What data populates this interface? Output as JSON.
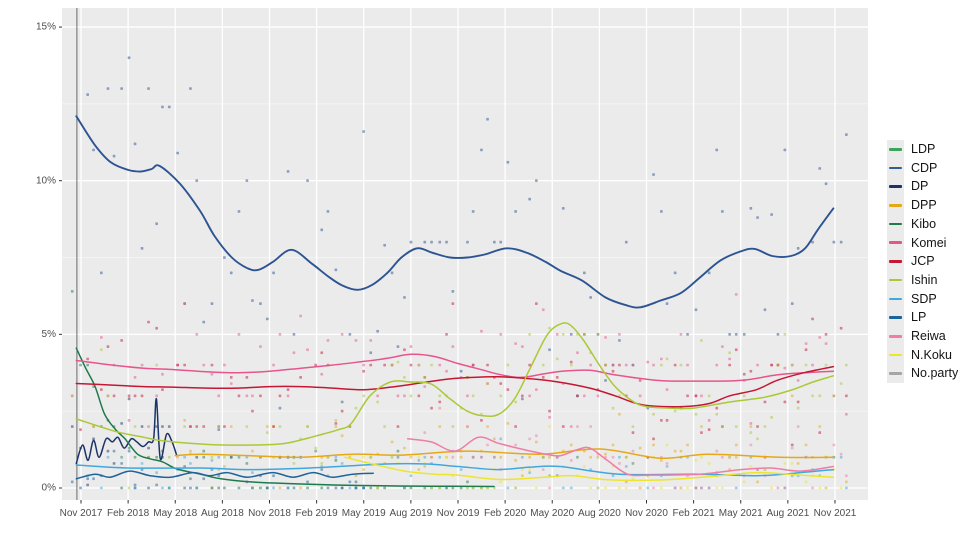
{
  "page": {
    "background": "#ffffff"
  },
  "chart_data": {
    "type": "scatter",
    "title": "",
    "subtitle": "",
    "panel": {
      "background": "#ebebeb",
      "grid_major_color": "#ffffff",
      "grid_minor_color": "#f7f7f7"
    },
    "x_axis": {
      "tick_labels": [
        "Nov 2017",
        "Feb 2018",
        "May 2018",
        "Aug 2018",
        "Nov 2018",
        "Feb 2019",
        "May 2019",
        "Aug 2019",
        "Nov 2019",
        "Feb 2020",
        "May 2020",
        "Aug 2020",
        "Nov 2020",
        "Feb 2021",
        "May 2021",
        "Aug 2021",
        "Nov 2021"
      ],
      "months_per_tick": 3,
      "label_color": "#4d4d4d"
    },
    "y_axis": {
      "tick_labels": [
        "0%",
        "5%",
        "10%",
        "15%"
      ],
      "tick_values": [
        0,
        5,
        10,
        15
      ],
      "minor_values": [
        2.5,
        7.5,
        12.5
      ],
      "range": [
        0,
        15.5
      ],
      "label_color": "#4d4d4d"
    },
    "event_line": {
      "month": -0.26,
      "color": "#5c5c5c"
    },
    "legend": [
      {
        "key": "ldp",
        "label": "LDP",
        "color": "#3fa45b"
      },
      {
        "key": "cdp",
        "label": "CDP",
        "color": "#2d5e94"
      },
      {
        "key": "dp",
        "label": "DP",
        "color": "#1b3467"
      },
      {
        "key": "dpp",
        "label": "DPP",
        "color": "#e6a817"
      },
      {
        "key": "kibo",
        "label": "Kibo",
        "color": "#1d7a4b"
      },
      {
        "key": "komei",
        "label": "Komei",
        "color": "#e8548c"
      },
      {
        "key": "jcp",
        "label": "JCP",
        "color": "#c41734"
      },
      {
        "key": "ishin",
        "label": "Ishin",
        "color": "#abc837"
      },
      {
        "key": "sdp",
        "label": "SDP",
        "color": "#41a7dc"
      },
      {
        "key": "lp",
        "label": "LP",
        "color": "#1f639b"
      },
      {
        "key": "reiwa",
        "label": "Reiwa",
        "color": "#f07ca8"
      },
      {
        "key": "nkoku",
        "label": "N.Koku",
        "color": "#ece52e"
      },
      {
        "key": "noparty",
        "label": "No.party",
        "color": "#a5a5a5"
      }
    ],
    "series": [
      {
        "name": "CDP",
        "color": "#2d5492",
        "line_width": 1.9,
        "line": [
          [
            -0.3,
            12.1
          ],
          [
            0.9,
            11.15
          ],
          [
            1.9,
            10.6
          ],
          [
            3,
            10.35
          ],
          [
            3.8,
            10.3
          ],
          [
            4.5,
            10.38
          ],
          [
            5,
            10.48
          ],
          [
            6.3,
            9.9
          ],
          [
            7.6,
            9.0
          ],
          [
            8.5,
            8.2
          ],
          [
            9.6,
            7.5
          ],
          [
            10.6,
            7.15
          ],
          [
            11.3,
            7.1
          ],
          [
            12.2,
            7.35
          ],
          [
            13.4,
            7.75
          ],
          [
            14.7,
            7.3
          ],
          [
            15.7,
            6.9
          ],
          [
            16.6,
            6.6
          ],
          [
            17.6,
            6.45
          ],
          [
            18.5,
            6.6
          ],
          [
            19.5,
            7.0
          ],
          [
            20.4,
            7.5
          ],
          [
            21.4,
            7.8
          ],
          [
            22.4,
            7.65
          ],
          [
            23.5,
            7.5
          ],
          [
            24.6,
            7.5
          ],
          [
            25.7,
            7.6
          ],
          [
            27.1,
            7.8
          ],
          [
            28.4,
            7.65
          ],
          [
            29.6,
            7.35
          ],
          [
            30.6,
            7.05
          ],
          [
            31.9,
            6.75
          ],
          [
            33.4,
            6.2
          ],
          [
            34.7,
            5.95
          ],
          [
            35.6,
            5.88
          ],
          [
            36.9,
            6.1
          ],
          [
            38.2,
            6.35
          ],
          [
            39.4,
            6.85
          ],
          [
            40.7,
            7.4
          ],
          [
            42,
            7.7
          ],
          [
            42.9,
            7.78
          ],
          [
            44,
            7.55
          ],
          [
            45.2,
            7.55
          ],
          [
            46.1,
            7.8
          ],
          [
            46.9,
            8.4
          ],
          [
            47.9,
            9.1
          ]
        ],
        "scatter": {
          "from": -0.5,
          "to": 48.9,
          "p": 0.95,
          "sd": 2.4
        }
      },
      {
        "name": "DP",
        "color": "#1b3467",
        "line_width": 1.5,
        "line": [
          [
            -0.3,
            0.8
          ],
          [
            0.1,
            1.4
          ],
          [
            0.45,
            0.9
          ],
          [
            0.8,
            1.55
          ],
          [
            1.15,
            1.0
          ],
          [
            1.6,
            1.6
          ],
          [
            2,
            1.5
          ],
          [
            2.35,
            1.65
          ],
          [
            2.75,
            1.3
          ],
          [
            3.2,
            1.6
          ],
          [
            3.55,
            1.5
          ],
          [
            3.95,
            1.35
          ],
          [
            4.3,
            1.5
          ],
          [
            4.62,
            1.6
          ],
          [
            4.8,
            2.9
          ],
          [
            5.05,
            0.95
          ],
          [
            5.45,
            1.75
          ],
          [
            5.8,
            1.5
          ],
          [
            6.1,
            1.05
          ]
        ],
        "scatter": {
          "from": -0.5,
          "to": 6.1,
          "p": 0.9,
          "sd": 0.7
        }
      },
      {
        "name": "DPP",
        "color": "#e6a817",
        "line_width": 1.5,
        "line": [
          [
            6,
            1.05
          ],
          [
            7.6,
            1.1
          ],
          [
            10.8,
            1.05
          ],
          [
            13.9,
            1.0
          ],
          [
            17.3,
            1.1
          ],
          [
            20.3,
            1.07
          ],
          [
            24.6,
            1.2
          ],
          [
            29.2,
            1.1
          ],
          [
            33,
            1.27
          ],
          [
            36.9,
            0.97
          ],
          [
            39.9,
            1.1
          ],
          [
            44.5,
            1.0
          ],
          [
            47.9,
            1.0
          ]
        ],
        "scatter": {
          "from": 6,
          "to": 48.9,
          "p": 0.85,
          "sd": 0.55
        }
      },
      {
        "name": "Kibo",
        "color": "#1d7a4b",
        "line_width": 1.5,
        "line": [
          [
            -0.3,
            4.55
          ],
          [
            0.3,
            3.9
          ],
          [
            0.9,
            3.3
          ],
          [
            1.5,
            2.4
          ],
          [
            2.2,
            1.9
          ],
          [
            2.8,
            1.6
          ],
          [
            3.6,
            1.1
          ],
          [
            4.4,
            0.95
          ],
          [
            5.2,
            0.85
          ],
          [
            6.1,
            0.62
          ],
          [
            7.6,
            0.45
          ],
          [
            8.9,
            0.3
          ],
          [
            10.8,
            0.2
          ],
          [
            14,
            0.13
          ],
          [
            17.8,
            0.08
          ],
          [
            22.3,
            0.06
          ],
          [
            26.3,
            0.05
          ]
        ],
        "scatter": {
          "from": -0.5,
          "to": 26.3,
          "p": 0.85,
          "sd": 0.65
        }
      },
      {
        "name": "Komei",
        "color": "#e8548c",
        "line_width": 1.5,
        "line": [
          [
            -0.3,
            4.15
          ],
          [
            2,
            4.0
          ],
          [
            4,
            3.9
          ],
          [
            6,
            3.85
          ],
          [
            8,
            3.78
          ],
          [
            10,
            3.75
          ],
          [
            12,
            3.8
          ],
          [
            14,
            3.9
          ],
          [
            16,
            4.0
          ],
          [
            18,
            4.12
          ],
          [
            19.5,
            4.22
          ],
          [
            21,
            4.35
          ],
          [
            22.5,
            4.28
          ],
          [
            24,
            4.05
          ],
          [
            25.5,
            3.85
          ],
          [
            26.6,
            3.7
          ],
          [
            28,
            3.6
          ],
          [
            29.5,
            3.72
          ],
          [
            30.6,
            3.8
          ],
          [
            32.4,
            3.83
          ],
          [
            34,
            3.68
          ],
          [
            36.7,
            3.5
          ],
          [
            39,
            3.48
          ],
          [
            42,
            3.5
          ],
          [
            44.3,
            3.68
          ],
          [
            46,
            3.75
          ],
          [
            47.9,
            3.8
          ]
        ],
        "scatter": {
          "from": -0.5,
          "to": 48.9,
          "p": 0.9,
          "sd": 1.0
        }
      },
      {
        "name": "JCP",
        "color": "#c41734",
        "line_width": 1.5,
        "line": [
          [
            -0.3,
            3.4
          ],
          [
            2,
            3.35
          ],
          [
            4,
            3.3
          ],
          [
            6,
            3.28
          ],
          [
            8,
            3.25
          ],
          [
            10,
            3.25
          ],
          [
            12,
            3.3
          ],
          [
            14,
            3.3
          ],
          [
            16,
            3.25
          ],
          [
            18,
            3.2
          ],
          [
            20,
            3.3
          ],
          [
            22,
            3.45
          ],
          [
            23.5,
            3.55
          ],
          [
            25,
            3.6
          ],
          [
            26.5,
            3.62
          ],
          [
            28,
            3.58
          ],
          [
            30,
            3.48
          ],
          [
            32.4,
            3.25
          ],
          [
            34,
            3.0
          ],
          [
            35.8,
            2.7
          ],
          [
            38.3,
            2.65
          ],
          [
            40,
            2.75
          ],
          [
            41.3,
            3.0
          ],
          [
            43,
            3.2
          ],
          [
            44.3,
            3.5
          ],
          [
            46,
            3.75
          ],
          [
            47.9,
            3.95
          ]
        ],
        "scatter": {
          "from": -0.5,
          "to": 48.9,
          "p": 0.9,
          "sd": 0.95
        }
      },
      {
        "name": "Ishin",
        "color": "#abc837",
        "line_width": 1.5,
        "line": [
          [
            -0.3,
            2.25
          ],
          [
            1.5,
            1.95
          ],
          [
            2.5,
            1.8
          ],
          [
            4,
            1.65
          ],
          [
            5,
            1.55
          ],
          [
            7,
            1.45
          ],
          [
            9,
            1.4
          ],
          [
            11,
            1.4
          ],
          [
            13,
            1.45
          ],
          [
            15,
            1.7
          ],
          [
            16.4,
            1.9
          ],
          [
            17.2,
            2.1
          ],
          [
            18.4,
            3.0
          ],
          [
            19.7,
            3.45
          ],
          [
            21,
            3.45
          ],
          [
            22.3,
            3.38
          ],
          [
            23.5,
            2.9
          ],
          [
            24.6,
            2.5
          ],
          [
            25.6,
            2.35
          ],
          [
            26.6,
            2.4
          ],
          [
            27.6,
            2.9
          ],
          [
            28.6,
            3.9
          ],
          [
            29.7,
            5.0
          ],
          [
            30.6,
            5.35
          ],
          [
            31.2,
            5.28
          ],
          [
            32,
            4.8
          ],
          [
            33,
            4.0
          ],
          [
            34,
            3.3
          ],
          [
            35.2,
            2.8
          ],
          [
            36,
            2.65
          ],
          [
            37.5,
            2.6
          ],
          [
            39,
            2.6
          ],
          [
            41.3,
            2.8
          ],
          [
            43.5,
            2.95
          ],
          [
            45.3,
            3.2
          ],
          [
            46.6,
            3.45
          ],
          [
            47.9,
            3.65
          ]
        ],
        "scatter": {
          "from": -0.5,
          "to": 48.9,
          "p": 0.85,
          "sd": 0.95
        }
      },
      {
        "name": "SDP",
        "color": "#41a7dc",
        "line_width": 1.5,
        "line": [
          [
            -0.3,
            0.75
          ],
          [
            3,
            0.65
          ],
          [
            7.6,
            0.65
          ],
          [
            10.8,
            0.6
          ],
          [
            14.6,
            0.65
          ],
          [
            19.4,
            0.78
          ],
          [
            22,
            0.78
          ],
          [
            24,
            0.7
          ],
          [
            26.5,
            0.6
          ],
          [
            28.6,
            0.68
          ],
          [
            30.5,
            0.7
          ],
          [
            34.3,
            0.45
          ],
          [
            39.4,
            0.45
          ],
          [
            43,
            0.4
          ],
          [
            45.8,
            0.5
          ],
          [
            47.9,
            0.6
          ]
        ],
        "scatter": {
          "from": -0.5,
          "to": 48.9,
          "p": 0.8,
          "sd": 0.45
        }
      },
      {
        "name": "LP",
        "color": "#1f639b",
        "line_width": 1.5,
        "line": [
          [
            -0.3,
            0.3
          ],
          [
            0.9,
            0.45
          ],
          [
            1.85,
            0.35
          ],
          [
            3.1,
            0.55
          ],
          [
            4.4,
            0.4
          ],
          [
            5.7,
            0.35
          ],
          [
            7.1,
            0.5
          ],
          [
            8.2,
            0.4
          ],
          [
            9.3,
            0.5
          ],
          [
            10.6,
            0.35
          ],
          [
            12.2,
            0.5
          ],
          [
            13.5,
            0.35
          ],
          [
            14.8,
            0.5
          ],
          [
            16,
            0.35
          ],
          [
            17.3,
            0.45
          ],
          [
            18.6,
            0.48
          ]
        ],
        "scatter": {
          "from": -0.5,
          "to": 18.6,
          "p": 0.8,
          "sd": 0.35
        }
      },
      {
        "name": "Reiwa",
        "color": "#f07ca8",
        "line_width": 1.5,
        "line": [
          [
            20.8,
            1.6
          ],
          [
            22.3,
            1.5
          ],
          [
            23.8,
            1.2
          ],
          [
            25.3,
            1.65
          ],
          [
            26.6,
            1.45
          ],
          [
            28.2,
            1.25
          ],
          [
            29.6,
            1.1
          ],
          [
            30.5,
            1.05
          ],
          [
            31.6,
            1.25
          ],
          [
            32.4,
            1.3
          ],
          [
            33.5,
            0.9
          ],
          [
            34.8,
            0.45
          ],
          [
            36.2,
            0.42
          ],
          [
            39.4,
            0.45
          ],
          [
            42,
            0.6
          ],
          [
            43.9,
            0.65
          ],
          [
            45.8,
            0.55
          ],
          [
            47.9,
            0.7
          ]
        ],
        "scatter": {
          "from": 20.8,
          "to": 48.9,
          "p": 0.9,
          "sd": 0.55
        }
      },
      {
        "name": "N.Koku",
        "color": "#ece52e",
        "line_width": 1.5,
        "line": [
          [
            16.8,
            1.0
          ],
          [
            18.4,
            0.8
          ],
          [
            20.6,
            0.55
          ],
          [
            22.5,
            0.45
          ],
          [
            24,
            0.42
          ],
          [
            26.6,
            0.28
          ],
          [
            29.5,
            0.35
          ],
          [
            31.3,
            0.4
          ],
          [
            33.5,
            0.27
          ],
          [
            36.9,
            0.26
          ],
          [
            40,
            0.37
          ],
          [
            43,
            0.5
          ],
          [
            45.8,
            0.42
          ],
          [
            47.9,
            0.35
          ]
        ],
        "scatter": {
          "from": 16.8,
          "to": 48.9,
          "p": 0.85,
          "sd": 0.35
        }
      }
    ]
  }
}
